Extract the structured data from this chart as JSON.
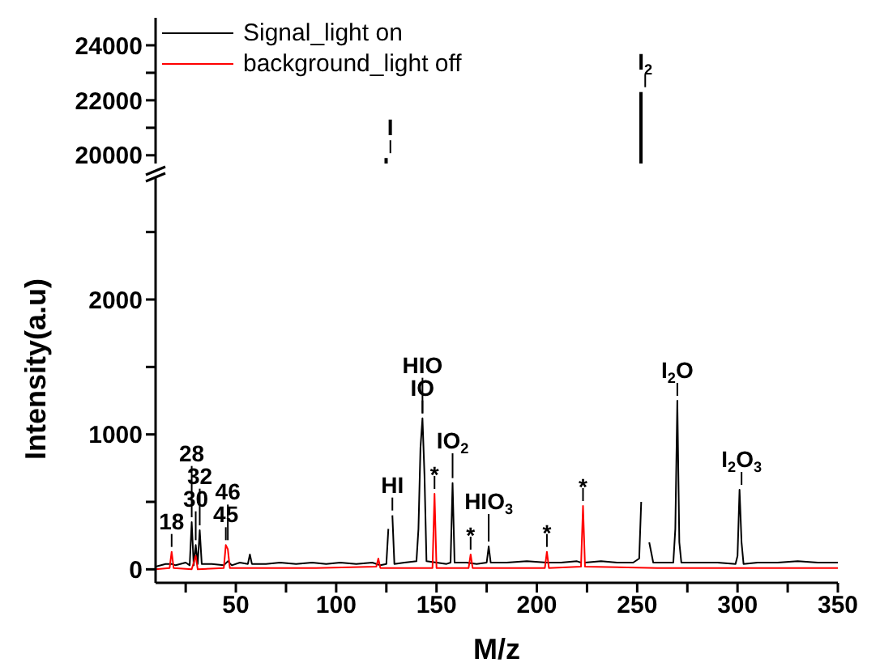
{
  "chart_data": [
    {
      "type": "bar",
      "xlim": [
        10,
        350
      ],
      "ylim": [
        19700,
        25000
      ],
      "yticks": [
        20000,
        {
          "value": 21000,
          "label": null
        },
        22000,
        {
          "value": 23000,
          "label": null
        },
        24000
      ],
      "tick_labels": "y",
      "legend": "top left",
      "grid": false,
      "series": [
        {
          "name": "Signal_light on",
          "color": "#000000",
          "x": [
            127,
            254
          ],
          "values": [
            19900,
            22300
          ]
        },
        {
          "name": "background_light off",
          "color": "#ff0000"
        }
      ],
      "annotations": [
        {
          "text": "I",
          "x": 127,
          "y": 19900
        },
        {
          "text": "I$_{2}$",
          "x": 254,
          "y": 22300
        }
      ]
    },
    {
      "type": "line",
      "xlabel": "M/z",
      "ylabel": "Intensity(a.u)",
      "xlim": [
        10,
        350
      ],
      "ylim": [
        -100,
        2900
      ],
      "grid": false,
      "xticks": [
        {
          "value": 25,
          "label": null
        },
        50,
        {
          "value": 75,
          "label": null
        },
        100,
        {
          "value": 125,
          "label": null
        },
        150,
        {
          "value": 175,
          "label": null
        },
        200,
        {
          "value": 225,
          "label": null
        },
        250,
        {
          "value": 275,
          "label": null
        },
        300,
        {
          "value": 325,
          "label": null
        },
        350
      ],
      "yticks": [
        0,
        {
          "value": 500,
          "label": null
        },
        1000,
        {
          "value": 1500,
          "label": null
        },
        2000,
        {
          "value": 2500,
          "label": null
        }
      ],
      "series": [
        {
          "color": "#000000",
          "x": [
            10,
            15,
            18,
            20,
            25,
            27,
            28,
            29,
            30,
            31,
            32,
            33,
            38,
            44,
            46,
            48,
            52,
            56,
            57,
            58,
            65,
            72,
            80,
            88,
            95,
            102,
            110,
            118,
            122,
            125,
            126,
            127,
            128,
            129,
            134,
            140,
            141,
            142,
            143,
            144,
            145,
            150,
            155,
            157,
            158,
            159,
            165,
            170,
            175,
            176,
            177,
            185,
            195,
            205,
            212,
            220,
            222,
            223,
            224,
            232,
            240,
            248,
            251,
            252,
            253,
            254,
            255,
            256,
            258,
            265,
            268,
            269,
            270,
            271,
            272,
            280,
            290,
            299,
            300,
            301,
            302,
            303,
            310,
            320,
            330,
            340,
            350
          ],
          "values": [
            20,
            40,
            40,
            30,
            50,
            30,
            350,
            30,
            180,
            40,
            290,
            40,
            40,
            30,
            60,
            30,
            50,
            40,
            110,
            40,
            40,
            50,
            40,
            50,
            40,
            50,
            40,
            50,
            30,
            40,
            300,
            null,
            400,
            40,
            50,
            60,
            300,
            900,
            1120,
            700,
            60,
            50,
            40,
            50,
            640,
            50,
            50,
            40,
            50,
            170,
            50,
            50,
            60,
            50,
            50,
            60,
            50,
            null,
            50,
            60,
            50,
            50,
            80,
            500,
            null,
            null,
            null,
            200,
            50,
            50,
            50,
            300,
            1250,
            200,
            50,
            50,
            50,
            40,
            100,
            590,
            200,
            40,
            50,
            50,
            60,
            50,
            50
          ]
        },
        {
          "color": "#ff0000",
          "x": [
            10,
            17,
            18,
            19,
            28,
            30,
            31,
            44,
            45,
            46,
            47,
            60,
            90,
            120,
            121,
            122,
            148,
            149,
            150,
            166,
            167,
            168,
            204,
            205,
            206,
            222,
            223,
            224,
            260,
            300,
            350
          ],
          "values": [
            0,
            10,
            130,
            10,
            0,
            100,
            0,
            10,
            180,
            150,
            10,
            10,
            10,
            20,
            80,
            10,
            10,
            560,
            10,
            10,
            110,
            10,
            10,
            130,
            10,
            20,
            470,
            20,
            10,
            10,
            10
          ]
        }
      ],
      "annotations": [
        {
          "text": "*",
          "x": 149,
          "y": 560
        },
        {
          "text": "*",
          "x": 167,
          "y": 110
        },
        {
          "text": "*",
          "x": 205,
          "y": 130
        },
        {
          "text": "*",
          "x": 223,
          "y": 470
        },
        {
          "text": "18",
          "x": 18,
          "y": 130
        },
        {
          "text": "30",
          "x": 30,
          "y": 180
        },
        {
          "text": "32",
          "x": 32,
          "y": 290
        },
        {
          "text": "28",
          "x": 28,
          "y": 350
        },
        {
          "text": "45",
          "x": 45,
          "y": 180
        },
        {
          "text": "46",
          "x": 46,
          "y": 180
        },
        {
          "text": "HI",
          "x": 128,
          "y": 400
        },
        {
          "text": "IO",
          "x": 143,
          "y": 1120
        },
        {
          "text": "HIO",
          "x": 143,
          "y": 1120
        },
        {
          "text": "IO$_{2}$",
          "x": 158,
          "y": 640
        },
        {
          "text": "HIO$_{3}$",
          "x": 176,
          "y": 170
        },
        {
          "text": "I$_{2}$O",
          "x": 270,
          "y": 1250
        },
        {
          "text": "I$_{2}$O$_{3}$",
          "x": 302,
          "y": 590
        }
      ]
    }
  ]
}
